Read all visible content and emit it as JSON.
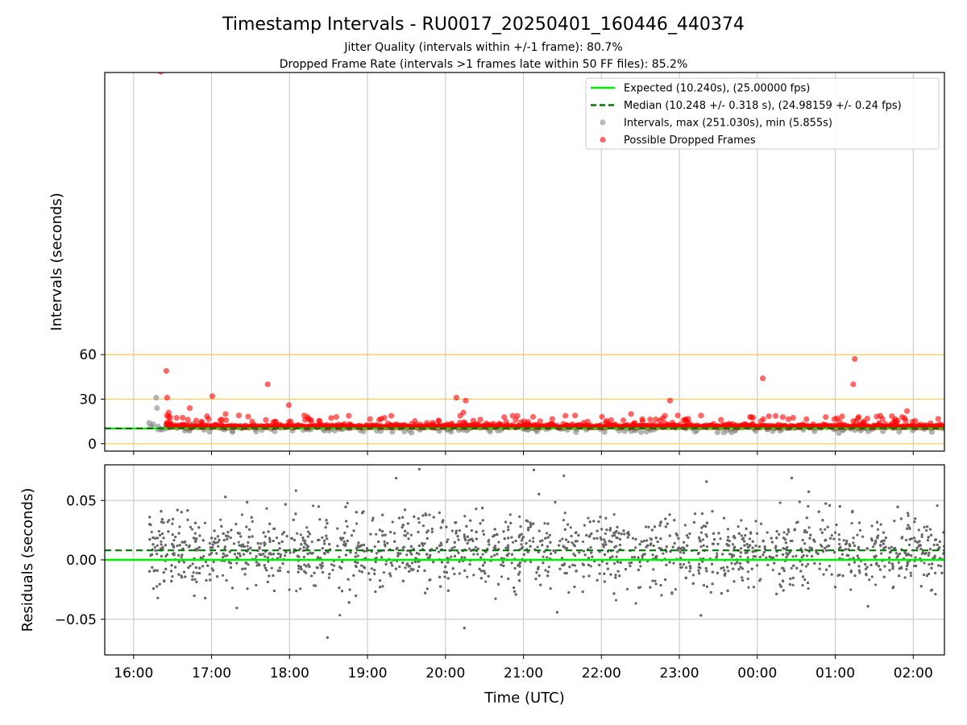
{
  "chart_data": {
    "title": "Timestamp Intervals - RU0017_20250401_160446_440374",
    "subtitles": [
      "Jitter Quality (intervals within +/-1 frame): 80.7%",
      "Dropped Frame Rate (intervals >1 frames late within 50 FF files): 85.2%"
    ],
    "xlabel": "Time (UTC)",
    "x_ticks": [
      "16:00",
      "17:00",
      "18:00",
      "19:00",
      "20:00",
      "21:00",
      "22:00",
      "23:00",
      "00:00",
      "01:00",
      "02:00"
    ],
    "x_range_hours": [
      15.63,
      26.4
    ],
    "colors": {
      "expected": "#00ee00",
      "median": "#007700",
      "intervals": "#8c8c8c",
      "dropped": "#ff0000",
      "residuals": "#666666",
      "reference_lines": "#ffcc55",
      "grid": "#cccccc"
    },
    "panels": [
      {
        "type": "scatter",
        "ylabel": "Intervals (seconds)",
        "ylim": [
          -5,
          250
        ],
        "y_ticks": [
          "0",
          "30",
          "60"
        ],
        "reference_lines": [
          0,
          30,
          60
        ],
        "expected": 10.24,
        "median": 10.248,
        "grid": "vertical",
        "legend_position": "top-right",
        "legend": [
          {
            "label": "Expected (10.240s), (25.00000 fps)",
            "marker": "line",
            "color": "#00ee00"
          },
          {
            "label": "Median (10.248 +/- 0.318 s), (24.98159 +/- 0.24 fps)",
            "marker": "dashed",
            "color": "#007700"
          },
          {
            "label": "Intervals, max (251.030s), min (5.855s)",
            "marker": "dot",
            "color": "#8c8c8c"
          },
          {
            "label": "Possible Dropped Frames",
            "marker": "dot",
            "color": "#ff0000"
          }
        ],
        "intervals_max": 251.03,
        "intervals_min": 5.855,
        "dropped_outliers": [
          {
            "t": 16.35,
            "y": 250.5
          },
          {
            "t": 16.42,
            "y": 49
          },
          {
            "t": 16.43,
            "y": 31
          },
          {
            "t": 16.45,
            "y": 21
          },
          {
            "t": 16.72,
            "y": 24
          },
          {
            "t": 17.01,
            "y": 32
          },
          {
            "t": 17.18,
            "y": 20
          },
          {
            "t": 17.35,
            "y": 19
          },
          {
            "t": 17.72,
            "y": 40
          },
          {
            "t": 17.99,
            "y": 26
          },
          {
            "t": 18.2,
            "y": 16
          },
          {
            "t": 18.6,
            "y": 18
          },
          {
            "t": 20.14,
            "y": 31
          },
          {
            "t": 20.26,
            "y": 29
          },
          {
            "t": 20.23,
            "y": 21
          },
          {
            "t": 20.9,
            "y": 16
          },
          {
            "t": 22.38,
            "y": 20
          },
          {
            "t": 22.88,
            "y": 29
          },
          {
            "t": 22.98,
            "y": 19
          },
          {
            "t": 24.07,
            "y": 44
          },
          {
            "t": 25.23,
            "y": 40
          },
          {
            "t": 25.25,
            "y": 57
          },
          {
            "t": 25.3,
            "y": 18
          },
          {
            "t": 25.78,
            "y": 14
          },
          {
            "t": 25.92,
            "y": 22
          }
        ],
        "gray_outliers": [
          {
            "t": 16.29,
            "y": 31
          },
          {
            "t": 16.3,
            "y": 24
          },
          {
            "t": 16.2,
            "y": 14
          },
          {
            "t": 16.25,
            "y": 13
          }
        ]
      },
      {
        "type": "scatter",
        "ylabel": "Residuals (seconds)",
        "ylim": [
          -0.08,
          0.08
        ],
        "y_ticks": [
          {
            "value": 0.05,
            "label": "0.05"
          },
          {
            "value": 0.0,
            "label": "0.00"
          },
          {
            "value": -0.05,
            "label": "−0.05"
          }
        ],
        "expected": 0.0,
        "median": 0.008,
        "grid": "both"
      }
    ]
  }
}
